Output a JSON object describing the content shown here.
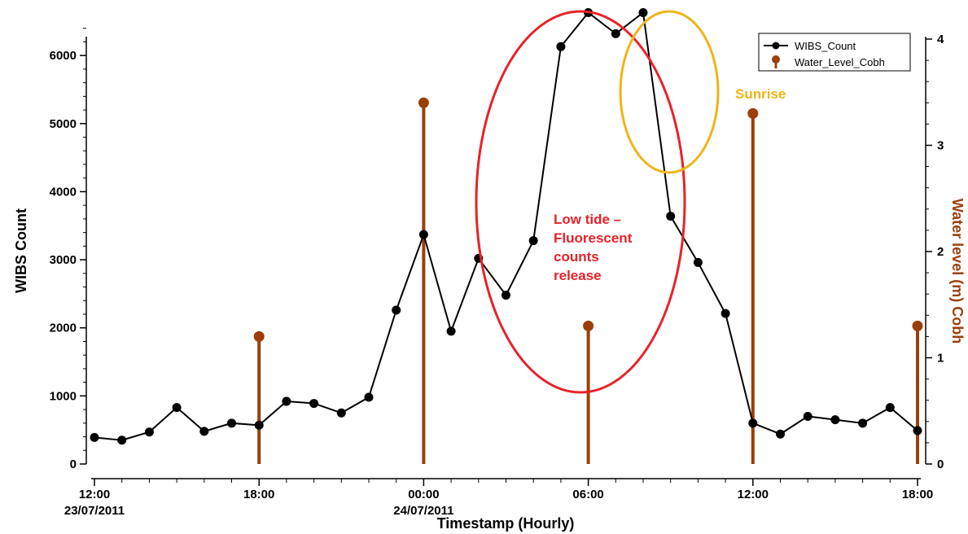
{
  "chart_data": {
    "type": "line",
    "xlabel": "Timestamp (Hourly)",
    "ylabel_left": "WIBS Count",
    "ylabel_right": "Water level (m) Cobh",
    "x_ticks": [
      {
        "hour": 0,
        "line1": "12:00",
        "line2": "23/07/2011"
      },
      {
        "hour": 6,
        "line1": "18:00",
        "line2": ""
      },
      {
        "hour": 12,
        "line1": "00:00",
        "line2": "24/07/2011"
      },
      {
        "hour": 18,
        "line1": "06:00",
        "line2": ""
      },
      {
        "hour": 24,
        "line1": "12:00",
        "line2": ""
      },
      {
        "hour": 30,
        "line1": "18:00",
        "line2": ""
      }
    ],
    "x_range_hours": [
      0,
      30
    ],
    "ylim_left": [
      0,
      6600
    ],
    "yticks_left": [
      0,
      1000,
      2000,
      3000,
      4000,
      5000,
      6000
    ],
    "ylim_right": [
      0,
      4
    ],
    "yticks_right": [
      0,
      1,
      2,
      3,
      4
    ],
    "series": [
      {
        "name": "WIBS_Count",
        "axis": "left",
        "style": "line-markers",
        "color": "#000000",
        "x_hours": [
          0,
          1,
          2,
          3,
          4,
          5,
          6,
          7,
          8,
          9,
          10,
          11,
          12,
          13,
          14,
          15,
          16,
          17,
          18,
          19,
          20,
          21,
          22,
          23,
          24,
          25,
          26,
          27,
          28,
          29,
          30
        ],
        "values": [
          390,
          350,
          470,
          830,
          480,
          600,
          570,
          920,
          890,
          750,
          980,
          2260,
          3370,
          1950,
          3020,
          2480,
          3280,
          6130,
          6630,
          6320,
          6630,
          3640,
          2960,
          2210,
          600,
          440,
          700,
          650,
          600,
          830,
          490
        ]
      },
      {
        "name": "Water_Level_Cobh",
        "axis": "right",
        "style": "stem",
        "color": "#9C3E0A",
        "x_hours": [
          6,
          12,
          18,
          24,
          30
        ],
        "values": [
          1.2,
          3.4,
          1.3,
          3.3,
          1.3
        ]
      }
    ],
    "legend_position": "top-right",
    "annotations": [
      {
        "text": [
          "Low tide –",
          "Fluorescent",
          "counts",
          "release"
        ],
        "color": "#E8222A"
      },
      {
        "text": [
          "Sunrise"
        ],
        "color": "#F0B418"
      }
    ]
  }
}
